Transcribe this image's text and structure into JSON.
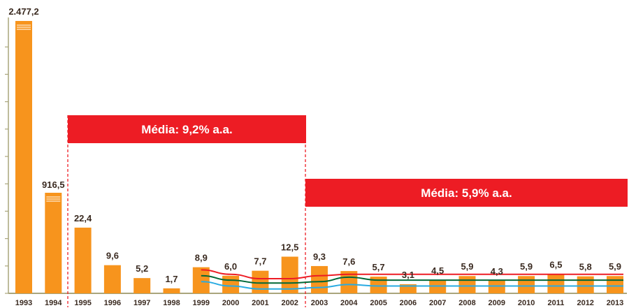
{
  "colors": {
    "bar": "#f7941d",
    "period_box": "#ed1c24",
    "axis": "#a9a57c",
    "band_upper": "#ed1c24",
    "band_center": "#006837",
    "band_lower": "#29abe2",
    "text": "#3a2a20"
  },
  "chart_data": {
    "type": "bar",
    "title": "",
    "xlabel": "",
    "ylabel": "",
    "y_scale": "broken (bars 1993 and 1994 truncated, shown with break marks)",
    "grid": false,
    "categories": [
      "1993",
      "1994",
      "1995",
      "1996",
      "1997",
      "1998",
      "1999",
      "2000",
      "2001",
      "2002",
      "2003",
      "2004",
      "2005",
      "2006",
      "2007",
      "2008",
      "2009",
      "2010",
      "2011",
      "2012",
      "2013"
    ],
    "values": [
      2477.2,
      916.5,
      22.4,
      9.6,
      5.2,
      1.7,
      8.9,
      6.0,
      7.7,
      12.5,
      9.3,
      7.6,
      5.7,
      3.1,
      4.5,
      5.9,
      4.3,
      5.9,
      6.5,
      5.8,
      5.9
    ],
    "value_labels": [
      "2.477,2",
      "916,5",
      "22,4",
      "9,6",
      "5,2",
      "1,7",
      "8,9",
      "6,0",
      "7,7",
      "12,5",
      "9,3",
      "7,6",
      "5,7",
      "3,1",
      "4,5",
      "5,9",
      "4,3",
      "5,9",
      "6,5",
      "5,8",
      "5,9"
    ],
    "target_band": {
      "start_year": "1999",
      "upper": [
        8.0,
        6.5,
        5.0,
        5.0,
        6.0,
        6.5,
        6.5,
        6.5,
        6.5,
        6.5,
        6.5,
        6.5,
        6.5,
        6.5,
        6.5
      ],
      "center": [
        6.0,
        4.5,
        3.5,
        3.5,
        4.0,
        5.5,
        4.5,
        4.5,
        4.5,
        4.5,
        4.5,
        4.5,
        4.5,
        4.5,
        4.5
      ],
      "lower": [
        4.0,
        2.5,
        1.5,
        1.5,
        2.0,
        3.0,
        2.5,
        2.5,
        2.5,
        2.5,
        2.5,
        2.5,
        2.5,
        2.5,
        2.5
      ]
    },
    "annotations": [
      {
        "text": "Média: 9,2% a.a.",
        "from": "1995",
        "to": "2002"
      },
      {
        "text": "Média: 5,9% a.a.",
        "from": "2003",
        "to": "2013"
      }
    ]
  }
}
